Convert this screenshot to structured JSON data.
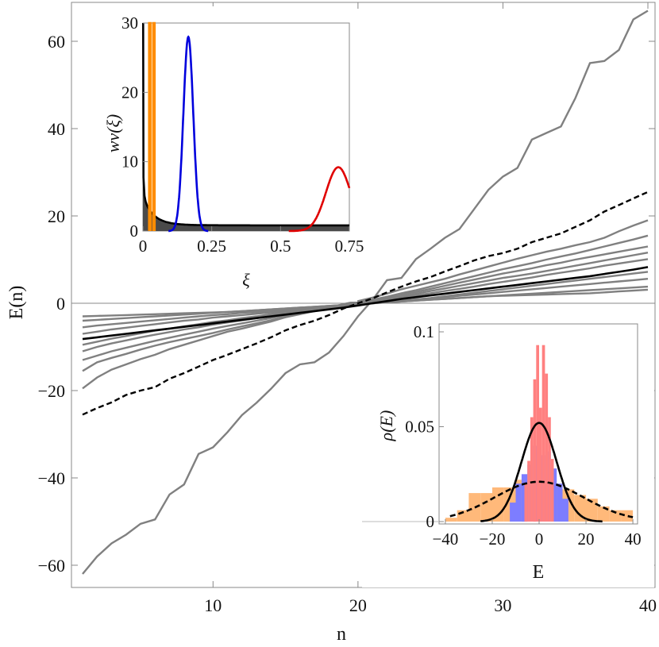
{
  "chart_data": [
    {
      "id": "main",
      "type": "line",
      "xlabel": "n",
      "ylabel": "E(n)",
      "xlim": [
        1,
        40
      ],
      "ylim": [
        -65,
        67
      ],
      "x_ticks": [
        10,
        20,
        30,
        40
      ],
      "y_ticks": [
        -60,
        -40,
        -20,
        0,
        20,
        40,
        60
      ],
      "x_tick_labels": [
        "10",
        "20",
        "30",
        "40"
      ],
      "y_tick_labels": [
        "−60",
        "−40",
        "−20",
        "0",
        "20",
        "40",
        "60"
      ],
      "colors": {
        "gray": "#808080",
        "black": "#000000"
      },
      "series": [
        {
          "style": "gray",
          "values": [
            -62,
            -58,
            -55,
            -53,
            -50.5,
            -49.5,
            -43.8,
            -41.5,
            -34.5,
            -33,
            -29.5,
            -25.6,
            -22.8,
            -19.6,
            -16,
            -14,
            -13.5,
            -11.3,
            -7.5,
            -3,
            0.7,
            5.3,
            5.8,
            10.1,
            12.5,
            15,
            17,
            21.5,
            26,
            29,
            31,
            37.5,
            39,
            40.5,
            47,
            55,
            55.5,
            58,
            65,
            67
          ]
        },
        {
          "style": "black-dashed",
          "values": [
            -25.5,
            -24,
            -22.7,
            -21,
            -20,
            -19.2,
            -17.3,
            -16,
            -14.5,
            -13,
            -11.8,
            -10.5,
            -9.2,
            -7.8,
            -6.2,
            -5,
            -4,
            -2.7,
            -1.2,
            0,
            1.1,
            2.5,
            3.8,
            5,
            6,
            7.3,
            8.5,
            9.8,
            10.8,
            11.5,
            12.5,
            14,
            15,
            16,
            17.5,
            19,
            21,
            22.5,
            24,
            25.5
          ]
        },
        {
          "style": "gray",
          "values": [
            -19.5,
            -17,
            -15.2,
            -14,
            -12.8,
            -11.8,
            -10.5,
            -9.5,
            -8.5,
            -7.5,
            -6.5,
            -5.8,
            -5,
            -4.2,
            -3.2,
            -2.4,
            -1.7,
            -1,
            -0.2,
            0.5,
            1.3,
            2.2,
            3.2,
            4,
            4.8,
            5.6,
            6.6,
            7.5,
            8.4,
            9.3,
            10.2,
            11,
            11.8,
            12.5,
            13.3,
            14,
            15,
            16.5,
            17.8,
            19
          ]
        },
        {
          "style": "gray",
          "values": [
            -15.5,
            -13.5,
            -12.5,
            -11.6,
            -10.6,
            -9.7,
            -8.9,
            -8.2,
            -7.5,
            -6.8,
            -6,
            -5.3,
            -4.6,
            -3.9,
            -3.2,
            -2.5,
            -1.8,
            -1.2,
            -0.5,
            0.1,
            0.8,
            1.5,
            2.3,
            3,
            3.8,
            4.6,
            5.4,
            6.2,
            7,
            7.8,
            8.5,
            9.2,
            10,
            10.7,
            11.4,
            12.2,
            13,
            13.8,
            14.6,
            15.5
          ]
        },
        {
          "style": "gray",
          "values": [
            -13,
            -12,
            -11,
            -10.2,
            -9.4,
            -8.6,
            -7.9,
            -7.2,
            -6.5,
            -5.8,
            -5.2,
            -4.6,
            -4,
            -3.4,
            -2.8,
            -2.2,
            -1.6,
            -1,
            -0.4,
            0.2,
            0.8,
            1.4,
            2,
            2.6,
            3.3,
            4,
            4.7,
            5.4,
            6.1,
            6.8,
            7.4,
            8,
            8.7,
            9.3,
            10,
            10.6,
            11.2,
            11.8,
            12.4,
            13
          ]
        },
        {
          "style": "gray",
          "values": [
            -11,
            -10,
            -9.2,
            -8.5,
            -7.8,
            -7.2,
            -6.6,
            -6,
            -5.5,
            -4.9,
            -4.4,
            -3.9,
            -3.4,
            -2.9,
            -2.4,
            -1.9,
            -1.4,
            -0.9,
            -0.4,
            0.1,
            0.6,
            1.1,
            1.6,
            2.2,
            2.8,
            3.4,
            4,
            4.6,
            5.2,
            5.8,
            6.3,
            6.8,
            7.4,
            8,
            8.6,
            9.2,
            9.8,
            10.4,
            11,
            11.6
          ]
        },
        {
          "style": "gray",
          "values": [
            -9.5,
            -8.8,
            -8.1,
            -7.5,
            -6.9,
            -6.3,
            -5.8,
            -5.3,
            -4.8,
            -4.3,
            -3.9,
            -3.4,
            -3,
            -2.5,
            -2.1,
            -1.7,
            -1.2,
            -0.8,
            -0.4,
            0,
            0.4,
            0.9,
            1.3,
            1.8,
            2.3,
            2.8,
            3.3,
            3.8,
            4.4,
            4.9,
            5.4,
            5.9,
            6.5,
            7,
            7.5,
            8,
            8.6,
            9.1,
            9.6,
            10.1
          ]
        },
        {
          "style": "gray",
          "values": [
            -7,
            -6.5,
            -6,
            -5.6,
            -5.2,
            -4.8,
            -4.4,
            -4,
            -3.7,
            -3.3,
            -3,
            -2.7,
            -2.4,
            -2.1,
            -1.8,
            -1.5,
            -1.2,
            -0.9,
            -0.6,
            -0.3,
            0,
            0.3,
            0.6,
            0.9,
            1.2,
            1.6,
            2,
            2.4,
            2.8,
            3.2,
            3.6,
            4,
            4.4,
            4.8,
            5.2,
            5.6,
            6,
            6.4,
            6.8,
            7.2
          ]
        },
        {
          "style": "gray",
          "values": [
            -5.5,
            -5.1,
            -4.8,
            -4.5,
            -4.2,
            -3.9,
            -3.6,
            -3.3,
            -3,
            -2.7,
            -2.5,
            -2.2,
            -2,
            -1.7,
            -1.5,
            -1.2,
            -1,
            -0.7,
            -0.5,
            -0.2,
            0,
            0.3,
            0.5,
            0.8,
            1.1,
            1.4,
            1.7,
            2,
            2.3,
            2.6,
            2.9,
            3.2,
            3.5,
            3.8,
            4.1,
            4.4,
            4.7,
            5,
            5.3,
            5.6
          ]
        },
        {
          "style": "gray",
          "values": [
            -4,
            -3.8,
            -3.6,
            -3.4,
            -3.2,
            -3,
            -2.8,
            -2.6,
            -2.4,
            -2.2,
            -2,
            -1.8,
            -1.6,
            -1.4,
            -1.2,
            -1,
            -0.8,
            -0.6,
            -0.4,
            -0.2,
            0,
            0.2,
            0.4,
            0.6,
            0.8,
            1,
            1.2,
            1.4,
            1.6,
            1.8,
            2,
            2.2,
            2.4,
            2.6,
            2.8,
            3,
            3.2,
            3.4,
            3.6,
            3.8
          ]
        },
        {
          "style": "gray",
          "values": [
            -3,
            -2.9,
            -2.8,
            -2.7,
            -2.6,
            -2.5,
            -2.4,
            -2.3,
            -2.2,
            -2.1,
            -2,
            -1.8,
            -1.6,
            -1.4,
            -1.2,
            -1,
            -0.8,
            -0.6,
            -0.4,
            -0.2,
            0,
            0.2,
            0.4,
            0.6,
            0.8,
            1,
            1.2,
            1.4,
            1.6,
            1.7,
            1.8,
            1.9,
            2,
            2.1,
            2.2,
            2.3,
            2.5,
            2.7,
            2.9,
            3.1
          ]
        },
        {
          "style": "black",
          "values": [
            -8.2,
            -7.8,
            -7.4,
            -7,
            -6.6,
            -6.2,
            -5.8,
            -5.4,
            -5,
            -4.6,
            -4.2,
            -3.8,
            -3.4,
            -3,
            -2.6,
            -2.2,
            -1.8,
            -1.4,
            -1,
            -0.5,
            0,
            0.5,
            1,
            1.4,
            1.8,
            2.2,
            2.6,
            3,
            3.4,
            3.8,
            4.2,
            4.6,
            5,
            5.4,
            5.8,
            6.2,
            6.7,
            7.2,
            7.7,
            8.3
          ]
        }
      ]
    },
    {
      "id": "inset-w",
      "type": "line",
      "xlabel": "ξ",
      "ylabel": "wν(ξ)",
      "xlim": [
        0,
        0.75
      ],
      "ylim": [
        0,
        30
      ],
      "x_ticks": [
        0,
        0.25,
        0.5,
        0.75
      ],
      "y_ticks": [
        0,
        10,
        20,
        30
      ],
      "x_tick_labels": [
        "0",
        "0.25",
        "0.5",
        "0.75"
      ],
      "y_tick_labels": [
        "0",
        "10",
        "20",
        "30"
      ],
      "colors": {
        "fill": "#4a4a4a",
        "black": "#000000",
        "orange": "#ff8c00",
        "blue": "#0000dd",
        "red": "#e00000"
      },
      "curves": [
        {
          "name": "",
          "color": "#000000",
          "shape": "decay",
          "peak_x": 0.0,
          "peak_y": 30,
          "tail_y": 0.8
        },
        {
          "name": "",
          "color": "#ff8c00",
          "shape": "spike",
          "center": 0.025,
          "peak_y": 30,
          "width": 0.006
        },
        {
          "name": "",
          "color": "#ff8c00",
          "shape": "spike",
          "center": 0.04,
          "peak_y": 30,
          "width": 0.006
        },
        {
          "name": "",
          "color": "#0000dd",
          "shape": "gauss",
          "center": 0.165,
          "peak_y": 28,
          "width": 0.018
        },
        {
          "name": "",
          "color": "#e00000",
          "shape": "gauss",
          "center": 0.71,
          "peak_y": 9.2,
          "width": 0.045
        }
      ]
    },
    {
      "id": "inset-rho",
      "type": "bar",
      "xlabel": "E",
      "ylabel": "ρ(E)",
      "xlim": [
        -42,
        42
      ],
      "ylim": [
        0,
        0.1
      ],
      "x_ticks": [
        -40,
        -20,
        0,
        20,
        40
      ],
      "y_ticks": [
        0,
        0.05,
        0.1
      ],
      "x_tick_labels": [
        "−40",
        "−20",
        "0",
        "20",
        "40"
      ],
      "y_tick_labels": [
        "0",
        "0.05",
        "0.1"
      ],
      "colors": {
        "orange": "#ffb97a",
        "blue": "#7d7dff",
        "red": "#ff8080",
        "black": "#000000"
      },
      "histograms": [
        {
          "color": "orange",
          "bin_width": 5,
          "bins": [
            [
              -40,
              0.002
            ],
            [
              -35,
              0.006
            ],
            [
              -30,
              0.015
            ],
            [
              -25,
              0.015
            ],
            [
              -20,
              0.018
            ],
            [
              -15,
              0.018
            ],
            [
              -10,
              0.022
            ],
            [
              -5,
              0.02
            ],
            [
              0,
              0.022
            ],
            [
              5,
              0.02
            ],
            [
              10,
              0.017
            ],
            [
              15,
              0.014
            ],
            [
              20,
              0.012
            ],
            [
              25,
              0.008
            ],
            [
              30,
              0.006
            ],
            [
              35,
              0.006
            ]
          ]
        },
        {
          "color": "blue",
          "bin_width": 2.5,
          "bins": [
            [
              -12.5,
              0.01
            ],
            [
              -10,
              0.02
            ],
            [
              -7.5,
              0.025
            ],
            [
              -5,
              0.03
            ],
            [
              -2.5,
              0.04
            ],
            [
              0,
              0.035
            ],
            [
              2.5,
              0.037
            ],
            [
              5,
              0.028
            ],
            [
              7.5,
              0.02
            ],
            [
              10,
              0.012
            ]
          ]
        },
        {
          "color": "red",
          "bin_width": 1.25,
          "bins": [
            [
              -6.25,
              0.02
            ],
            [
              -5,
              0.032
            ],
            [
              -3.75,
              0.055
            ],
            [
              -2.5,
              0.075
            ],
            [
              -1.25,
              0.093
            ],
            [
              0,
              0.06
            ],
            [
              1.25,
              0.093
            ],
            [
              2.5,
              0.078
            ],
            [
              3.75,
              0.055
            ],
            [
              5,
              0.033
            ]
          ]
        }
      ],
      "curves": [
        {
          "style": "solid",
          "color": "#000000",
          "mean": 0,
          "sigma": 7.5,
          "peak": 0.052,
          "range": [
            -25,
            27
          ]
        },
        {
          "style": "dashed",
          "color": "#000000",
          "mean": 0,
          "sigma": 19,
          "peak": 0.021,
          "range": [
            -38,
            40
          ]
        }
      ]
    }
  ]
}
